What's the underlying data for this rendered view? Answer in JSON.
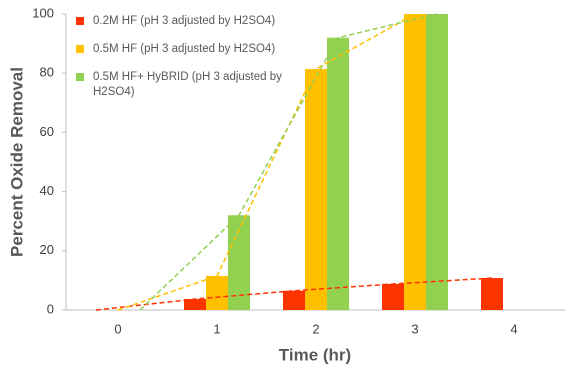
{
  "chart_data": {
    "type": "bar",
    "y_label": "Percent Oxide Removal",
    "x_label": "Time (hr)",
    "categories": [
      "0",
      "1",
      "2",
      "3",
      "4"
    ],
    "series": [
      {
        "name": "0.2M HF (pH 3 adjusted by H2SO4)",
        "color": "#ff3300",
        "values": [
          0,
          3.7,
          6.5,
          8.8,
          10.8
        ]
      },
      {
        "name": "0.5M HF (pH 3 adjusted by H2SO4)",
        "color": "#ffc000",
        "values": [
          0,
          11.5,
          81.4,
          100,
          0
        ]
      },
      {
        "name": "0.5M HF+ HyBRID (pH 3 adjusted by H2SO4)",
        "color": "#92d050",
        "values": [
          0,
          32,
          92,
          100,
          0
        ]
      }
    ],
    "ylim": [
      0,
      100
    ],
    "yticks": [
      0,
      20,
      40,
      60,
      80,
      100
    ],
    "trendlines": true,
    "legend": "upper-left",
    "grid": false
  }
}
